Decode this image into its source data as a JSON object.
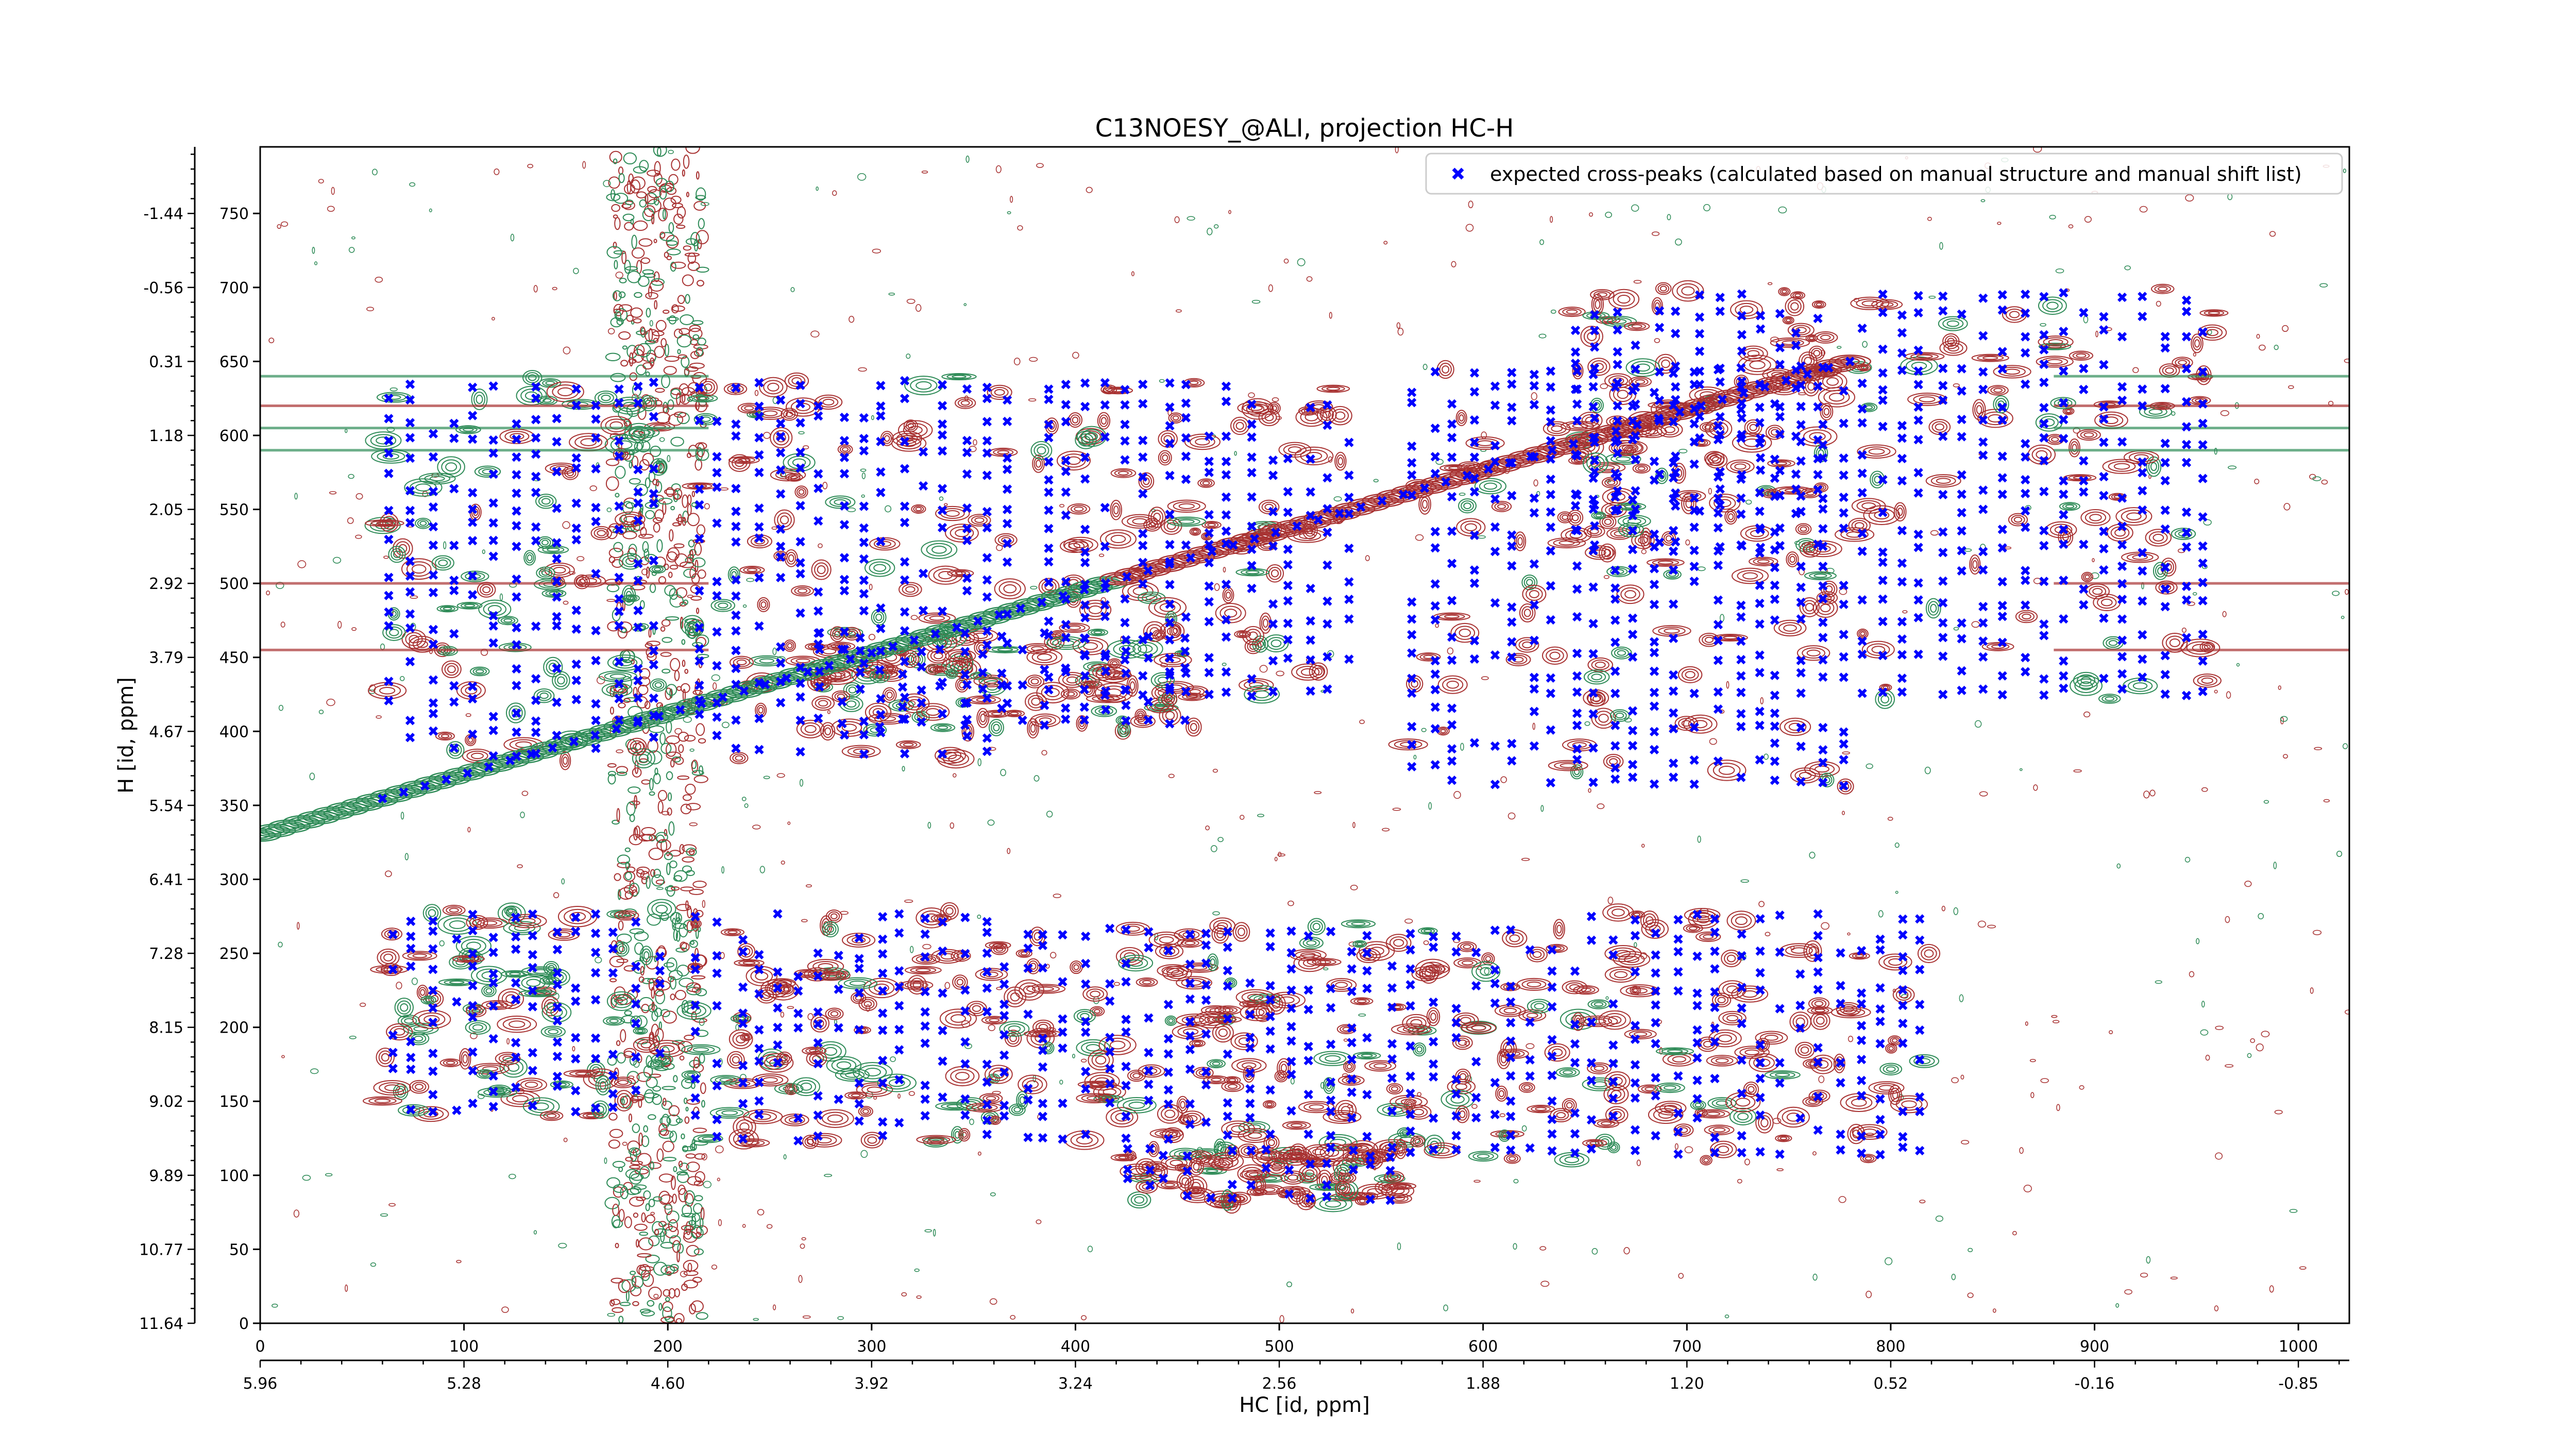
{
  "chart_data": {
    "type": "scatter",
    "title": "C13NOESY_@ALI, projection HC-H",
    "xlabel": "HC [id, ppm]",
    "ylabel": "H [id, ppm]",
    "xlim": [
      0,
      1025
    ],
    "ylim": [
      0,
      795
    ],
    "grid": false,
    "legend": {
      "position": "top-right",
      "entries": [
        "expected cross-peaks (calculated based on manual structure and manual shift list)"
      ]
    },
    "x_index_ticks": [
      "0",
      "100",
      "200",
      "300",
      "400",
      "500",
      "600",
      "700",
      "800",
      "900",
      "1000"
    ],
    "x_index_tick_values": [
      0,
      100,
      200,
      300,
      400,
      500,
      600,
      700,
      800,
      900,
      1000
    ],
    "x_ppm_ticks": [
      "5.96",
      "5.28",
      "4.60",
      "3.92",
      "3.24",
      "2.56",
      "1.88",
      "1.20",
      "0.52",
      "-0.16",
      "-0.85"
    ],
    "x_ppm_tick_positions": [
      0,
      100,
      200,
      300,
      400,
      500,
      600,
      700,
      800,
      900,
      1000
    ],
    "y_index_ticks": [
      "0",
      "50",
      "100",
      "150",
      "200",
      "250",
      "300",
      "350",
      "400",
      "450",
      "500",
      "550",
      "600",
      "650",
      "700",
      "750"
    ],
    "y_index_tick_values": [
      0,
      50,
      100,
      150,
      200,
      250,
      300,
      350,
      400,
      450,
      500,
      550,
      600,
      650,
      700,
      750
    ],
    "y_ppm_ticks": [
      "11.64",
      "10.77",
      "9.89",
      "9.02",
      "8.15",
      "7.28",
      "6.41",
      "5.54",
      "4.67",
      "3.79",
      "2.92",
      "2.05",
      "1.18",
      "0.31",
      "-0.56",
      "-1.44"
    ],
    "y_ppm_tick_positions": [
      0,
      50,
      100,
      150,
      200,
      250,
      300,
      350,
      400,
      450,
      500,
      550,
      600,
      650,
      700,
      750
    ],
    "colors": {
      "expected_marker": "#0000ff",
      "positive_contours": "#a83232",
      "negative_contours": "#2e8b57"
    },
    "series": [
      {
        "name": "expected cross-peaks (calculated based on manual structure and manual shift list)",
        "marker": "x",
        "color": "#0000ff",
        "clusters": [
          {
            "x": [
              60,
              200
            ],
            "y": [
              140,
              280
            ]
          },
          {
            "x": [
              210,
              360
            ],
            "y": [
              120,
              280
            ]
          },
          {
            "x": [
              360,
              500
            ],
            "y": [
              120,
              270
            ]
          },
          {
            "x": [
              500,
              650
            ],
            "y": [
              110,
              270
            ]
          },
          {
            "x": [
              650,
              820
            ],
            "y": [
              110,
              280
            ]
          },
          {
            "x": [
              60,
              200
            ],
            "y": [
              380,
              640
            ]
          },
          {
            "x": [
              210,
              370
            ],
            "y": [
              380,
              640
            ]
          },
          {
            "x": [
              380,
              540
            ],
            "y": [
              420,
              640
            ]
          },
          {
            "x": [
              560,
              780
            ],
            "y": [
              360,
              650
            ]
          },
          {
            "x": [
              640,
              770
            ],
            "y": [
              520,
              700
            ]
          },
          {
            "x": [
              780,
              960
            ],
            "y": [
              420,
              700
            ]
          },
          {
            "x": [
              270,
              460
            ],
            "y": [
              400,
              470
            ]
          },
          {
            "x": [
              420,
              560
            ],
            "y": [
              80,
              120
            ]
          }
        ]
      }
    ],
    "diagonal": {
      "from": [
        0,
        330
      ],
      "to": [
        780,
        650
      ]
    },
    "vertical_band_center_x": 195
  }
}
